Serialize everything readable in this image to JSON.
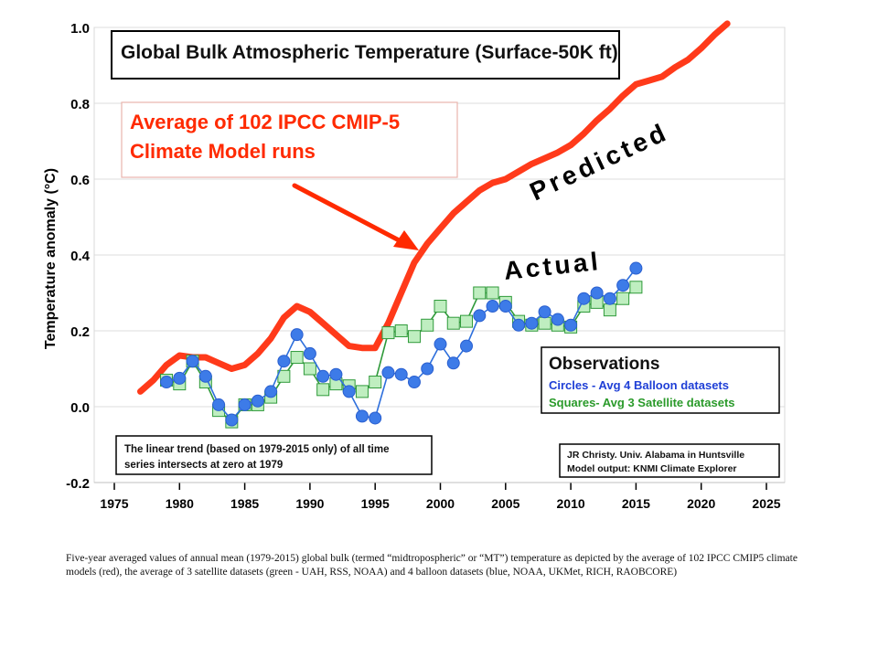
{
  "caption": "Five-year averaged values of annual mean (1979-2015) global bulk (termed “midtropospheric” or “MT”) temperature as depicted by the average of 102 IPCC CMIP5 climate models (red), the average of 3 satellite datasets (green - UAH, RSS, NOAA) and 4 balloon datasets (blue, NOAA, UKMet, RICH, RAOBCORE)",
  "chart_data": {
    "type": "line",
    "title": "Global Bulk Atmospheric Temperature (Surface-50K ft)",
    "xlabel": "",
    "ylabel": "Temperature anomaly (°C)",
    "xlim": [
      1975,
      2025
    ],
    "ylim": [
      -0.2,
      1.0
    ],
    "grid": true,
    "x_ticks": [
      "1975",
      "1980",
      "1985",
      "1990",
      "1995",
      "2000",
      "2005",
      "2010",
      "2015",
      "2020",
      "2025"
    ],
    "y_ticks": [
      "1.0",
      "0.8",
      "0.6",
      "0.4",
      "0.2",
      "0.0",
      "-0.2"
    ],
    "series": [
      {
        "name": "",
        "color": "#ff3a1a",
        "marker": "none",
        "x": [
          1977,
          1978,
          1979,
          1980,
          1981,
          1982,
          1983,
          1984,
          1985,
          1986,
          1987,
          1988,
          1989,
          1990,
          1991,
          1992,
          1993,
          1994,
          1995,
          1996,
          1997,
          1998,
          1999,
          2000,
          2001,
          2002,
          2003,
          2004,
          2005,
          2006,
          2007,
          2008,
          2009,
          2010,
          2011,
          2012,
          2013,
          2014,
          2015,
          2016,
          2017,
          2018,
          2019,
          2020,
          2021,
          2022
        ],
        "y": [
          0.04,
          0.07,
          0.11,
          0.135,
          0.13,
          0.13,
          0.115,
          0.1,
          0.11,
          0.14,
          0.18,
          0.235,
          0.265,
          0.25,
          0.22,
          0.19,
          0.16,
          0.155,
          0.155,
          0.22,
          0.3,
          0.38,
          0.43,
          0.47,
          0.51,
          0.54,
          0.57,
          0.59,
          0.6,
          0.62,
          0.64,
          0.655,
          0.67,
          0.69,
          0.72,
          0.755,
          0.785,
          0.82,
          0.85,
          0.86,
          0.87,
          0.895,
          0.915,
          0.945,
          0.98,
          1.01
        ]
      },
      {
        "name": "",
        "color": "#2e6fdc",
        "marker": "circle",
        "x": [
          1979,
          1980,
          1981,
          1982,
          1983,
          1984,
          1985,
          1986,
          1987,
          1988,
          1989,
          1990,
          1991,
          1992,
          1993,
          1994,
          1995,
          1996,
          1997,
          1998,
          1999,
          2000,
          2001,
          2002,
          2003,
          2004,
          2005,
          2006,
          2007,
          2008,
          2009,
          2010,
          2011,
          2012,
          2013,
          2014,
          2015
        ],
        "y": [
          0.065,
          0.075,
          0.12,
          0.08,
          0.005,
          -0.035,
          0.005,
          0.015,
          0.04,
          0.12,
          0.19,
          0.14,
          0.08,
          0.085,
          0.04,
          -0.025,
          -0.03,
          0.09,
          0.085,
          0.065,
          0.1,
          0.165,
          0.115,
          0.16,
          0.24,
          0.265,
          0.265,
          0.215,
          0.22,
          0.25,
          0.23,
          0.215,
          0.285,
          0.3,
          0.285,
          0.32,
          0.365
        ]
      },
      {
        "name": "",
        "color": "#2f9a3a",
        "marker": "square",
        "x": [
          1979,
          1980,
          1981,
          1982,
          1983,
          1984,
          1985,
          1986,
          1987,
          1988,
          1989,
          1990,
          1991,
          1992,
          1993,
          1994,
          1995,
          1996,
          1997,
          1998,
          1999,
          2000,
          2001,
          2002,
          2003,
          2004,
          2005,
          2006,
          2007,
          2008,
          2009,
          2010,
          2011,
          2012,
          2013,
          2014,
          2015
        ],
        "y": [
          0.07,
          0.06,
          0.12,
          0.065,
          -0.01,
          -0.04,
          0.005,
          0.005,
          0.025,
          0.08,
          0.13,
          0.1,
          0.045,
          0.06,
          0.055,
          0.04,
          0.065,
          0.195,
          0.2,
          0.185,
          0.215,
          0.265,
          0.22,
          0.225,
          0.3,
          0.3,
          0.275,
          0.225,
          0.215,
          0.22,
          0.215,
          0.21,
          0.265,
          0.275,
          0.255,
          0.285,
          0.315
        ]
      }
    ],
    "annotations": {
      "model_box": [
        "Average of 102 IPCC CMIP-5",
        "Climate Model runs"
      ],
      "predicted": "Predicted",
      "actual": "Actual",
      "observations": {
        "title": "Observations",
        "circles": "Circles - Avg 4 Balloon datasets",
        "squares": "Squares- Avg 3 Satellite datasets"
      },
      "trend_note": [
        "The linear trend (based on 1979-2015 only) of all time",
        "series intersects at zero at 1979"
      ],
      "credit": [
        "JR Christy. Univ. Alabama in Huntsville",
        "Model output: KNMI Climate Explorer"
      ]
    }
  }
}
